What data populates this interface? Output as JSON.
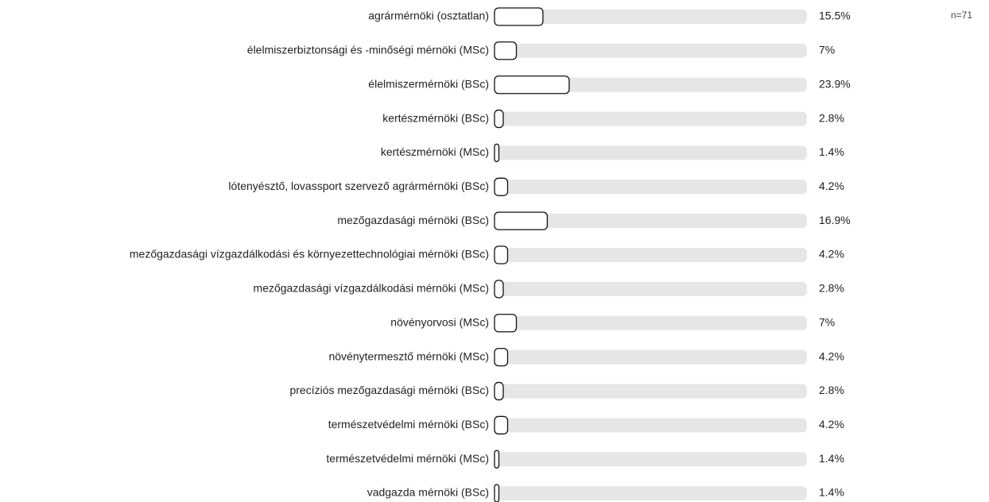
{
  "chart_data": {
    "type": "bar",
    "orientation": "horizontal",
    "annotation": "n=71",
    "categories": [
      "agrármérnöki (osztatlan)",
      "élelmiszerbiztonsági és -minőségi mérnöki (MSc)",
      "élelmiszermérnöki (BSc)",
      "kertészmérnöki (BSc)",
      "kertészmérnöki (MSc)",
      "lótenyésztő, lovassport szervező agrármérnöki (BSc)",
      "mezőgazdasági mérnöki (BSc)",
      "mezőgazdasági vízgazdálkodási és környezettechnológiai mérnöki (BSc)",
      "mezőgazdasági vízgazdálkodási mérnöki (MSc)",
      "növényorvosi (MSc)",
      "növénytermesztő mérnöki (MSc)",
      "precíziós mezőgazdasági mérnöki (BSc)",
      "természetvédelmi mérnöki (BSc)",
      "természetvédelmi mérnöki (MSc)",
      "vadgazda mérnöki (BSc)"
    ],
    "values": [
      15.5,
      7,
      23.9,
      2.8,
      1.4,
      4.2,
      16.9,
      4.2,
      2.8,
      7,
      4.2,
      2.8,
      4.2,
      1.4,
      1.4
    ],
    "value_labels": [
      "15.5%",
      "7%",
      "23.9%",
      "2.8%",
      "1.4%",
      "4.2%",
      "16.9%",
      "4.2%",
      "2.8%",
      "7%",
      "4.2%",
      "2.8%",
      "4.2%",
      "1.4%",
      "1.4%"
    ],
    "xlim": [
      0,
      100
    ],
    "color": "#ffffff",
    "track_color": "#e6e6e6"
  }
}
